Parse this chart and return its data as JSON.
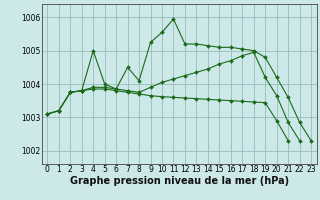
{
  "background_color": "#cce8e8",
  "grid_color": "#99bbbb",
  "line_color": "#1a6b1a",
  "marker_color": "#1a6b1a",
  "xlabel": "Graphe pression niveau de la mer (hPa)",
  "xlabel_fontsize": 7,
  "tick_fontsize": 5.5,
  "xlim": [
    -0.5,
    23.5
  ],
  "ylim": [
    1001.6,
    1006.4
  ],
  "yticks": [
    1002,
    1003,
    1004,
    1005,
    1006
  ],
  "xticks": [
    0,
    1,
    2,
    3,
    4,
    5,
    6,
    7,
    8,
    9,
    10,
    11,
    12,
    13,
    14,
    15,
    16,
    17,
    18,
    19,
    20,
    21,
    22,
    23
  ],
  "series": [
    {
      "x": [
        0,
        1,
        2,
        3,
        4,
        5,
        6,
        7,
        8,
        9,
        10,
        11,
        12,
        13,
        14,
        15,
        16,
        17,
        18,
        19,
        20,
        21,
        22,
        23
      ],
      "y": [
        1003.1,
        1003.2,
        1003.75,
        1003.8,
        1005.0,
        1004.0,
        1003.85,
        1004.5,
        1004.1,
        1005.25,
        1005.55,
        1005.95,
        1005.2,
        1005.2,
        1005.15,
        1005.1,
        1005.1,
        1005.05,
        1005.0,
        1004.8,
        1004.2,
        1003.6,
        1002.85,
        1002.3
      ]
    },
    {
      "x": [
        0,
        1,
        2,
        3,
        4,
        5,
        6,
        7,
        8,
        9,
        10,
        11,
        12,
        13,
        14,
        15,
        16,
        17,
        18,
        19,
        20,
        21,
        22
      ],
      "y": [
        1003.1,
        1003.2,
        1003.75,
        1003.8,
        1003.9,
        1003.9,
        1003.85,
        1003.8,
        1003.75,
        1003.9,
        1004.05,
        1004.15,
        1004.25,
        1004.35,
        1004.45,
        1004.6,
        1004.7,
        1004.85,
        1004.95,
        1004.2,
        1003.65,
        1002.85,
        1002.3
      ]
    },
    {
      "x": [
        0,
        1,
        2,
        3,
        4,
        5,
        6,
        7,
        8,
        9,
        10,
        11,
        12,
        13,
        14,
        15,
        16,
        17,
        18,
        19,
        20,
        21
      ],
      "y": [
        1003.1,
        1003.2,
        1003.75,
        1003.8,
        1003.85,
        1003.85,
        1003.8,
        1003.75,
        1003.7,
        1003.65,
        1003.62,
        1003.6,
        1003.58,
        1003.56,
        1003.54,
        1003.52,
        1003.5,
        1003.48,
        1003.46,
        1003.44,
        1002.9,
        1002.3
      ]
    }
  ]
}
